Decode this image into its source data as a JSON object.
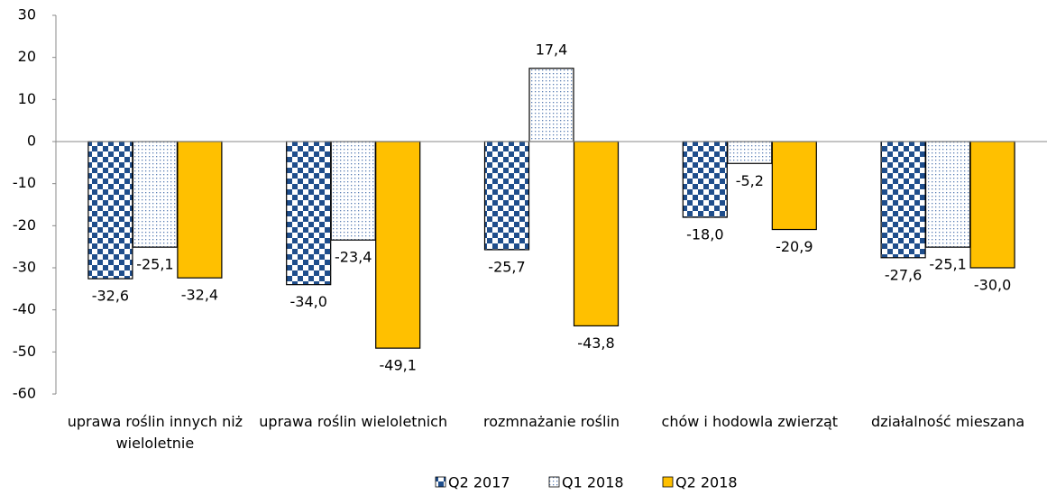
{
  "chart_data": {
    "type": "bar",
    "categories": [
      "uprawa roślin innych niż wieloletnie",
      "uprawa roślin wieloletnich",
      "rozmnażanie roślin",
      "chów i hodowla zwierząt",
      "działalność mieszana"
    ],
    "series": [
      {
        "name": "Q2 2017",
        "color": "#1f4e8c",
        "pattern": "checker",
        "values": [
          -32.6,
          -34.0,
          -25.7,
          -18.0,
          -27.6
        ],
        "value_labels": [
          "-32,6",
          "-34,0",
          "-25,7",
          "-18,0",
          "-27,6"
        ]
      },
      {
        "name": "Q1 2018",
        "color": "#5b7fb5",
        "pattern": "dots",
        "values": [
          -25.1,
          -23.4,
          17.4,
          -5.2,
          -25.1
        ],
        "value_labels": [
          "-25,1",
          "-23,4",
          "17,4",
          "-5,2",
          "-25,1"
        ]
      },
      {
        "name": "Q2 2018",
        "color": "#ffc000",
        "pattern": "solid",
        "values": [
          -32.4,
          -49.1,
          -43.8,
          -20.9,
          -30.0
        ],
        "value_labels": [
          "-32,4",
          "-49,1",
          "-43,8",
          "-20,9",
          "-30,0"
        ]
      }
    ],
    "ylim": [
      -60,
      30
    ],
    "yticks": [
      -60,
      -50,
      -40,
      -30,
      -20,
      -10,
      0,
      10,
      20,
      30
    ],
    "legend": "bottom"
  }
}
